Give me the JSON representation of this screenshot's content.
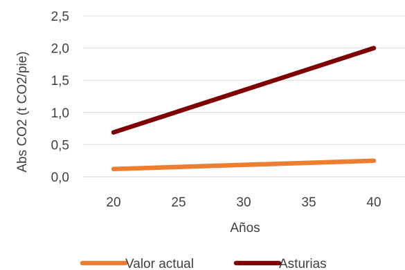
{
  "chart_data": {
    "type": "line",
    "title": "",
    "xlabel": "Años",
    "ylabel": "Abs CO2 (t CO2/pie)",
    "x": [
      20,
      40
    ],
    "xticks": [
      "20",
      "25",
      "30",
      "35",
      "40"
    ],
    "xlim": [
      20,
      40
    ],
    "yticks": [
      "0,0",
      "0,5",
      "1,0",
      "1,5",
      "2,0",
      "2,5"
    ],
    "ylim": [
      0,
      2.5
    ],
    "grid": "horizontal",
    "legend": "bottom",
    "series": [
      {
        "name": "Valor actual",
        "color": "#ED7D31",
        "values": [
          0.12,
          0.25
        ]
      },
      {
        "name": "Asturias",
        "color": "#7F0000",
        "values": [
          0.69,
          2.0
        ]
      }
    ]
  }
}
